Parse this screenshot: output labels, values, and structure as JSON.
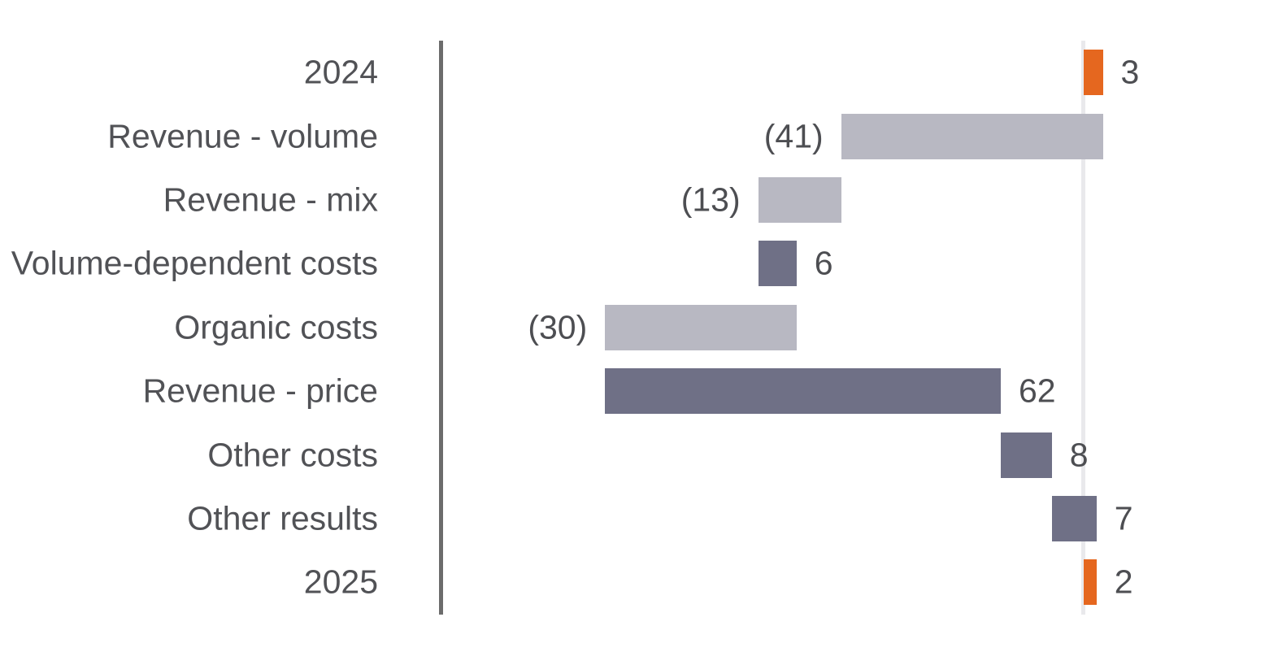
{
  "chart_data": {
    "type": "bar",
    "subtype": "waterfall",
    "orientation": "horizontal",
    "title": "",
    "xlabel": "",
    "ylabel": "",
    "baseline_value": 0,
    "value_range": [
      -80,
      10
    ],
    "grid": false,
    "legend": false,
    "categories": [
      "2024",
      "Revenue - volume",
      "Revenue - mix",
      "Volume-dependent costs",
      "Organic costs",
      "Revenue - price",
      "Other costs",
      "Other results",
      "2025"
    ],
    "rows": [
      {
        "label": "2024",
        "value": 3,
        "display": "3",
        "start": 0,
        "end": 3,
        "role": "total",
        "label_side": "right"
      },
      {
        "label": "Revenue - volume",
        "value": -41,
        "display": "(41)",
        "start": 3,
        "end": -38,
        "role": "decrease",
        "label_side": "left"
      },
      {
        "label": "Revenue - mix",
        "value": -13,
        "display": "(13)",
        "start": -38,
        "end": -51,
        "role": "decrease",
        "label_side": "left"
      },
      {
        "label": "Volume-dependent costs",
        "value": 6,
        "display": "6",
        "start": -51,
        "end": -45,
        "role": "increase",
        "label_side": "right"
      },
      {
        "label": "Organic costs",
        "value": -30,
        "display": "(30)",
        "start": -45,
        "end": -75,
        "role": "decrease",
        "label_side": "left"
      },
      {
        "label": "Revenue - price",
        "value": 62,
        "display": "62",
        "start": -75,
        "end": -13,
        "role": "increase",
        "label_side": "right"
      },
      {
        "label": "Other costs",
        "value": 8,
        "display": "8",
        "start": -13,
        "end": -5,
        "role": "increase",
        "label_side": "right"
      },
      {
        "label": "Other results",
        "value": 7,
        "display": "7",
        "start": -5,
        "end": 2,
        "role": "increase",
        "label_side": "right"
      },
      {
        "label": "2025",
        "value": 2,
        "display": "2",
        "start": 0,
        "end": 2,
        "role": "total",
        "label_side": "right"
      }
    ],
    "colors": {
      "total": "#e5671f",
      "decrease": "#b8b8c2",
      "increase": "#6f7086",
      "axis_line": "#6c6c6c",
      "baseline_line": "#e9e9ec",
      "category_text": "#515256",
      "value_text": "#4d4e52"
    }
  }
}
